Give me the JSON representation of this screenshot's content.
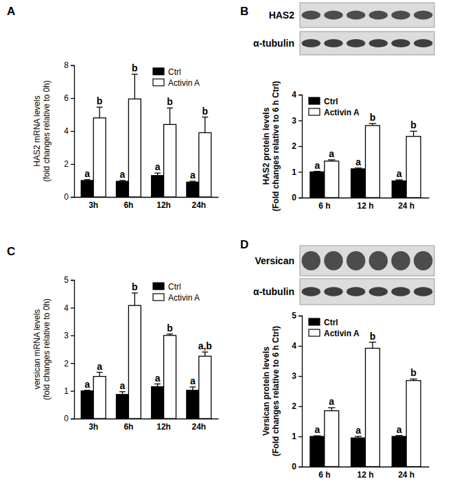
{
  "chart_data": [
    {
      "type": "bar",
      "title": "A",
      "y_label": [
        "HAS2 mRNA levels",
        "(fold changes relative to 0h)"
      ],
      "categories": [
        "3h",
        "6h",
        "12h",
        "24h"
      ],
      "series": [
        {
          "name": "Ctrl",
          "color": "#000000",
          "values": [
            1.0,
            0.95,
            1.3,
            0.9
          ],
          "errors": [
            0.05,
            0.05,
            0.15,
            0.05
          ],
          "annotations": [
            "a",
            "a",
            "a",
            "a"
          ]
        },
        {
          "name": "Activin A",
          "color": "#ffffff",
          "values": [
            4.8,
            5.95,
            4.4,
            3.9
          ],
          "errors": [
            0.65,
            1.5,
            1.0,
            0.95
          ],
          "annotations": [
            "b",
            "b",
            "b",
            "b"
          ]
        }
      ],
      "ylim": [
        0,
        8
      ],
      "yticks": [
        0,
        2,
        4,
        6,
        8
      ],
      "legend": "upper right"
    },
    {
      "type": "bar",
      "title": "B",
      "y_label": [
        "HAS2 protein levels",
        "(Fold changes relative to 6 h Ctrl)"
      ],
      "blot_labels": [
        "HAS2",
        "α-tubulin"
      ],
      "categories": [
        "6 h",
        "12 h",
        "24 h"
      ],
      "series": [
        {
          "name": "Ctrl",
          "color": "#000000",
          "values": [
            1.0,
            1.12,
            0.65
          ],
          "errors": [
            0.02,
            0.03,
            0.04
          ],
          "annotations": [
            "a",
            "a",
            "a"
          ]
        },
        {
          "name": "Activin A",
          "color": "#ffffff",
          "values": [
            1.42,
            2.8,
            2.38
          ],
          "errors": [
            0.05,
            0.08,
            0.2
          ],
          "annotations": [
            "a",
            "b",
            "b"
          ]
        }
      ],
      "ylim": [
        0,
        4
      ],
      "yticks": [
        0,
        1,
        2,
        3,
        4
      ],
      "legend": "upper left"
    },
    {
      "type": "bar",
      "title": "C",
      "y_label": [
        "versican mRNA levels",
        "(fold changes relative to 0h)"
      ],
      "categories": [
        "3h",
        "6h",
        "12h",
        "24h"
      ],
      "series": [
        {
          "name": "Ctrl",
          "color": "#000000",
          "values": [
            1.0,
            0.87,
            1.15,
            1.02
          ],
          "errors": [
            0.02,
            0.1,
            0.1,
            0.12
          ],
          "annotations": [
            "a",
            "a",
            "a",
            "a"
          ]
        },
        {
          "name": "Activin A",
          "color": "#ffffff",
          "values": [
            1.52,
            4.08,
            3.0,
            2.25
          ],
          "errors": [
            0.15,
            0.45,
            0.05,
            0.15
          ],
          "annotations": [
            "a",
            "b",
            "b",
            "a,b"
          ]
        }
      ],
      "ylim": [
        0,
        5
      ],
      "yticks": [
        0,
        1,
        2,
        3,
        4,
        5
      ],
      "legend": "upper right"
    },
    {
      "type": "bar",
      "title": "D",
      "y_label": [
        "Versican protein levels",
        "(Fold changes relative to 6 h Ctrl)"
      ],
      "blot_labels": [
        "Versican",
        "α-tubulin"
      ],
      "categories": [
        "6 h",
        "12 h",
        "24 h"
      ],
      "series": [
        {
          "name": "Ctrl",
          "color": "#000000",
          "values": [
            1.0,
            0.95,
            1.0
          ],
          "errors": [
            0.02,
            0.05,
            0.03
          ],
          "annotations": [
            "a",
            "a",
            "a"
          ]
        },
        {
          "name": "Activin A",
          "color": "#ffffff",
          "values": [
            1.85,
            3.92,
            2.85
          ],
          "errors": [
            0.1,
            0.2,
            0.05
          ],
          "annotations": [
            "a",
            "b",
            "b"
          ]
        }
      ],
      "ylim": [
        0,
        5
      ],
      "yticks": [
        0,
        1,
        2,
        3,
        4,
        5
      ],
      "legend": "upper left"
    }
  ]
}
